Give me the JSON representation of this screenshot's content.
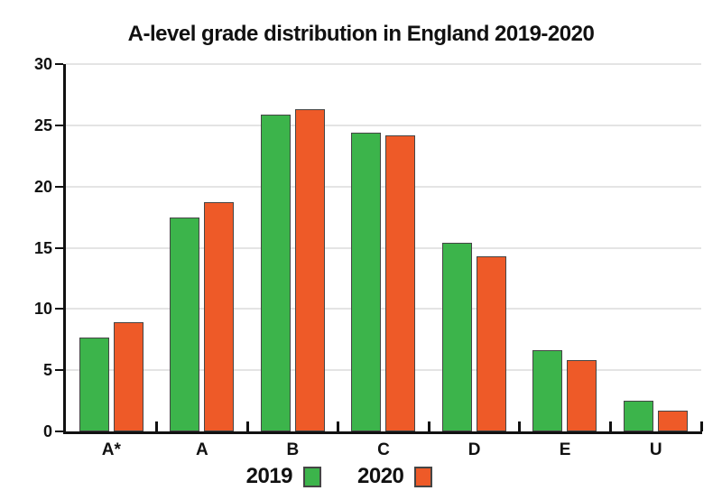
{
  "chart_data": {
    "type": "bar",
    "title": "A-level grade distribution in England 2019-2020",
    "categories": [
      "A*",
      "A",
      "B",
      "C",
      "D",
      "E",
      "U"
    ],
    "series": [
      {
        "name": "2019",
        "color": "#3cb44b",
        "values": [
          7.7,
          17.5,
          25.9,
          24.4,
          15.4,
          6.6,
          2.5
        ]
      },
      {
        "name": "2020",
        "color": "#ee5a28",
        "values": [
          8.9,
          18.7,
          26.3,
          24.2,
          14.3,
          5.8,
          1.7
        ]
      }
    ],
    "xlabel": "",
    "ylabel": "",
    "ylim": [
      0,
      30
    ],
    "y_ticks": [
      0,
      5,
      10,
      15,
      20,
      25,
      30
    ],
    "grid": true,
    "legend_position": "bottom",
    "colors": {
      "axis": "#111111",
      "gridline": "#e4e4e4",
      "bar_border": "#454545",
      "text": "#111111",
      "background": "#ffffff"
    }
  }
}
